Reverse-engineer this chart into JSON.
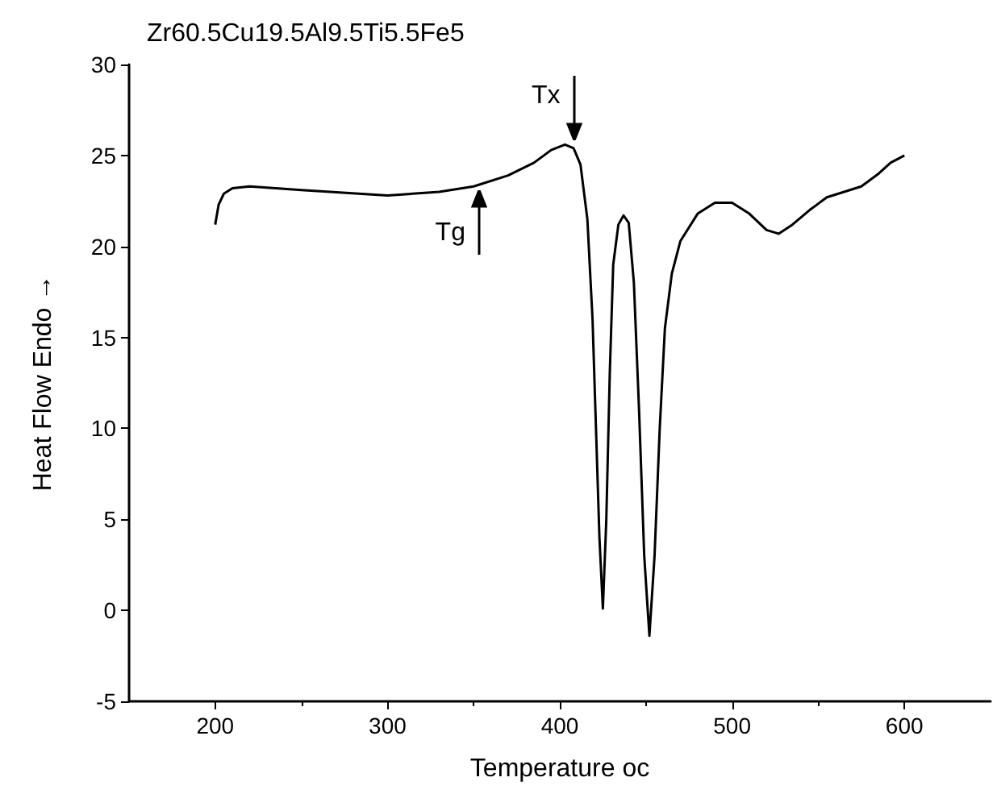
{
  "chart_data": {
    "type": "line",
    "title": "Zr60.5Cu19.5Al9.5Ti5.5Fe5",
    "xlabel": "Temperature oc",
    "ylabel": "Heat Flow Endo →",
    "xlim": [
      150,
      650
    ],
    "xticks": [
      200,
      300,
      400,
      500,
      600
    ],
    "ylim": [
      -5,
      30
    ],
    "yticks": [
      -5,
      0,
      5,
      10,
      15,
      20,
      25,
      30
    ],
    "grid": false,
    "marker": "none",
    "line_style": "solid",
    "series": [
      {
        "color": "#000000",
        "x": [
          200,
          202,
          205,
          210,
          220,
          250,
          300,
          330,
          350,
          370,
          385,
          395,
          403,
          408,
          412,
          416,
          419,
          421,
          423,
          425,
          427,
          429,
          431,
          434,
          437,
          440,
          443,
          446,
          449,
          452,
          455,
          458,
          461,
          465,
          470,
          480,
          490,
          500,
          510,
          520,
          527,
          535,
          545,
          555,
          565,
          575,
          585,
          592,
          600
        ],
        "values": [
          21.2,
          22.3,
          22.9,
          23.2,
          23.3,
          23.1,
          22.8,
          23.0,
          23.3,
          23.9,
          24.6,
          25.3,
          25.6,
          25.4,
          24.5,
          21.5,
          16,
          10,
          4,
          0.1,
          5,
          13,
          19,
          21.2,
          21.7,
          21.3,
          18,
          11,
          3,
          -1.4,
          3,
          10,
          15.5,
          18.5,
          20.3,
          21.8,
          22.4,
          22.4,
          21.8,
          20.9,
          20.7,
          21.2,
          22,
          22.7,
          23,
          23.3,
          24,
          24.6,
          25
        ]
      }
    ],
    "annotations": [
      {
        "text": "Tg",
        "x": 353,
        "y": 23.4
      },
      {
        "text": "Tx",
        "x": 408,
        "y": 25.5
      }
    ]
  }
}
